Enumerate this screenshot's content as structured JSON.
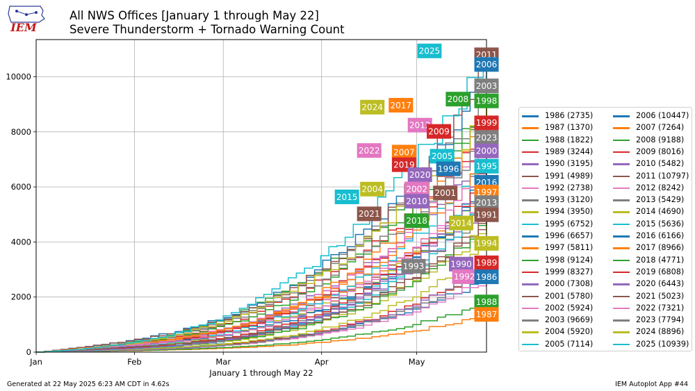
{
  "header": {
    "title_line1": "All NWS Offices [January 1 through May 22]",
    "title_line2": "Severe Thunderstorm + Tornado Warning Count",
    "logo_text": "IEM"
  },
  "footer": {
    "left": "Generated at 22 May 2025 6:23 AM CDT in 4.62s",
    "right": "IEM Autoplot App #44"
  },
  "chart_data": {
    "type": "line",
    "title": "All NWS Offices [January 1 through May 22]\nSevere Thunderstorm + Tornado Warning Count",
    "xlabel": "January 1 through May 22",
    "ylabel": "",
    "x_unit": "day of year",
    "x_ticks": [
      {
        "label": "Jan",
        "day": 1
      },
      {
        "label": "Feb",
        "day": 32
      },
      {
        "label": "Mar",
        "day": 60
      },
      {
        "label": "Apr",
        "day": 91
      },
      {
        "label": "May",
        "day": 121
      }
    ],
    "xlim": [
      1,
      143
    ],
    "ylim": [
      0,
      11350
    ],
    "y_ticks": [
      0,
      2000,
      4000,
      6000,
      8000,
      10000
    ],
    "grid": true,
    "legend_placement": "right",
    "series": [
      {
        "name": "1986",
        "total": 2735,
        "label": "1986 (2735)",
        "color": "#1f77b4"
      },
      {
        "name": "1987",
        "total": 1370,
        "label": "1987 (1370)",
        "color": "#ff7f0e"
      },
      {
        "name": "1988",
        "total": 1822,
        "label": "1988 (1822)",
        "color": "#2ca02c"
      },
      {
        "name": "1989",
        "total": 3244,
        "label": "1989 (3244)",
        "color": "#d62728"
      },
      {
        "name": "1990",
        "total": 3195,
        "label": "1990 (3195)",
        "color": "#9467bd"
      },
      {
        "name": "1991",
        "total": 4989,
        "label": "1991 (4989)",
        "color": "#8c564b"
      },
      {
        "name": "1992",
        "total": 2738,
        "label": "1992 (2738)",
        "color": "#e377c2"
      },
      {
        "name": "1993",
        "total": 3120,
        "label": "1993 (3120)",
        "color": "#7f7f7f"
      },
      {
        "name": "1994",
        "total": 3950,
        "label": "1994 (3950)",
        "color": "#bcbd22"
      },
      {
        "name": "1995",
        "total": 6752,
        "label": "1995 (6752)",
        "color": "#17becf"
      },
      {
        "name": "1996",
        "total": 6657,
        "label": "1996 (6657)",
        "color": "#1f77b4"
      },
      {
        "name": "1997",
        "total": 5811,
        "label": "1997 (5811)",
        "color": "#ff7f0e"
      },
      {
        "name": "1998",
        "total": 9124,
        "label": "1998 (9124)",
        "color": "#2ca02c"
      },
      {
        "name": "1999",
        "total": 8327,
        "label": "1999 (8327)",
        "color": "#d62728"
      },
      {
        "name": "2000",
        "total": 7308,
        "label": "2000 (7308)",
        "color": "#9467bd"
      },
      {
        "name": "2001",
        "total": 5780,
        "label": "2001 (5780)",
        "color": "#8c564b"
      },
      {
        "name": "2002",
        "total": 5924,
        "label": "2002 (5924)",
        "color": "#e377c2"
      },
      {
        "name": "2003",
        "total": 9669,
        "label": "2003 (9669)",
        "color": "#7f7f7f"
      },
      {
        "name": "2004",
        "total": 5920,
        "label": "2004 (5920)",
        "color": "#bcbd22"
      },
      {
        "name": "2005",
        "total": 7114,
        "label": "2005 (7114)",
        "color": "#17becf"
      },
      {
        "name": "2006",
        "total": 10447,
        "label": "2006 (10447)",
        "color": "#1f77b4"
      },
      {
        "name": "2007",
        "total": 7264,
        "label": "2007 (7264)",
        "color": "#ff7f0e"
      },
      {
        "name": "2008",
        "total": 9188,
        "label": "2008 (9188)",
        "color": "#2ca02c"
      },
      {
        "name": "2009",
        "total": 8016,
        "label": "2009 (8016)",
        "color": "#d62728"
      },
      {
        "name": "2010",
        "total": 5482,
        "label": "2010 (5482)",
        "color": "#9467bd"
      },
      {
        "name": "2011",
        "total": 10797,
        "label": "2011 (10797)",
        "color": "#8c564b"
      },
      {
        "name": "2012",
        "total": 8242,
        "label": "2012 (8242)",
        "color": "#e377c2"
      },
      {
        "name": "2013",
        "total": 5429,
        "label": "2013 (5429)",
        "color": "#7f7f7f"
      },
      {
        "name": "2014",
        "total": 4690,
        "label": "2014 (4690)",
        "color": "#bcbd22"
      },
      {
        "name": "2015",
        "total": 5636,
        "label": "2015 (5636)",
        "color": "#17becf"
      },
      {
        "name": "2016",
        "total": 6166,
        "label": "2016 (6166)",
        "color": "#1f77b4"
      },
      {
        "name": "2017",
        "total": 8966,
        "label": "2017 (8966)",
        "color": "#ff7f0e"
      },
      {
        "name": "2018",
        "total": 4771,
        "label": "2018 (4771)",
        "color": "#2ca02c"
      },
      {
        "name": "2019",
        "total": 6808,
        "label": "2019 (6808)",
        "color": "#d62728"
      },
      {
        "name": "2020",
        "total": 6443,
        "label": "2020 (6443)",
        "color": "#9467bd"
      },
      {
        "name": "2021",
        "total": 5023,
        "label": "2021 (5023)",
        "color": "#8c564b"
      },
      {
        "name": "2022",
        "total": 7321,
        "label": "2022 (7321)",
        "color": "#e377c2"
      },
      {
        "name": "2023",
        "total": 7794,
        "label": "2023 (7794)",
        "color": "#7f7f7f"
      },
      {
        "name": "2024",
        "total": 8896,
        "label": "2024 (8896)",
        "color": "#bcbd22"
      },
      {
        "name": "2025",
        "total": 10939,
        "label": "2025 (10939)",
        "color": "#17becf"
      }
    ],
    "annotations": [
      {
        "text": "2025",
        "x": 125,
        "y": 10939,
        "color": "#17becf"
      },
      {
        "text": "2011",
        "x": 143,
        "y": 10797,
        "color": "#8c564b"
      },
      {
        "text": "2006",
        "x": 143,
        "y": 10447,
        "color": "#1f77b4"
      },
      {
        "text": "2003",
        "x": 143,
        "y": 9669,
        "color": "#7f7f7f"
      },
      {
        "text": "2008",
        "x": 134,
        "y": 9188,
        "color": "#2ca02c"
      },
      {
        "text": "1998",
        "x": 143,
        "y": 9124,
        "color": "#2ca02c"
      },
      {
        "text": "2017",
        "x": 116,
        "y": 8966,
        "color": "#ff7f0e"
      },
      {
        "text": "2024",
        "x": 107,
        "y": 8896,
        "color": "#bcbd22"
      },
      {
        "text": "1999",
        "x": 143,
        "y": 8327,
        "color": "#d62728"
      },
      {
        "text": "2012",
        "x": 122,
        "y": 8242,
        "color": "#e377c2"
      },
      {
        "text": "2009",
        "x": 128,
        "y": 8016,
        "color": "#d62728"
      },
      {
        "text": "2023",
        "x": 143,
        "y": 7794,
        "color": "#7f7f7f"
      },
      {
        "text": "2022",
        "x": 106,
        "y": 7321,
        "color": "#e377c2"
      },
      {
        "text": "2000",
        "x": 143,
        "y": 7308,
        "color": "#9467bd"
      },
      {
        "text": "2007",
        "x": 117,
        "y": 7264,
        "color": "#ff7f0e"
      },
      {
        "text": "2005",
        "x": 129,
        "y": 7114,
        "color": "#17becf"
      },
      {
        "text": "2019",
        "x": 117,
        "y": 6808,
        "color": "#d62728"
      },
      {
        "text": "1995",
        "x": 143,
        "y": 6752,
        "color": "#17becf"
      },
      {
        "text": "1996",
        "x": 131,
        "y": 6657,
        "color": "#1f77b4"
      },
      {
        "text": "2020",
        "x": 122,
        "y": 6443,
        "color": "#9467bd"
      },
      {
        "text": "2016",
        "x": 143,
        "y": 6166,
        "color": "#1f77b4"
      },
      {
        "text": "2004",
        "x": 107,
        "y": 5920,
        "color": "#bcbd22"
      },
      {
        "text": "2002",
        "x": 121,
        "y": 5924,
        "color": "#e377c2"
      },
      {
        "text": "1997",
        "x": 143,
        "y": 5811,
        "color": "#ff7f0e"
      },
      {
        "text": "2001",
        "x": 130,
        "y": 5780,
        "color": "#8c564b"
      },
      {
        "text": "2015",
        "x": 99,
        "y": 5636,
        "color": "#17becf"
      },
      {
        "text": "2010",
        "x": 121,
        "y": 5482,
        "color": "#9467bd"
      },
      {
        "text": "2013",
        "x": 143,
        "y": 5429,
        "color": "#7f7f7f"
      },
      {
        "text": "2021",
        "x": 106,
        "y": 5023,
        "color": "#8c564b"
      },
      {
        "text": "1991",
        "x": 143,
        "y": 4989,
        "color": "#8c564b"
      },
      {
        "text": "2018",
        "x": 121,
        "y": 4771,
        "color": "#2ca02c"
      },
      {
        "text": "2014",
        "x": 135,
        "y": 4690,
        "color": "#bcbd22"
      },
      {
        "text": "1994",
        "x": 143,
        "y": 3950,
        "color": "#bcbd22"
      },
      {
        "text": "1989",
        "x": 143,
        "y": 3244,
        "color": "#d62728"
      },
      {
        "text": "1990",
        "x": 135,
        "y": 3195,
        "color": "#9467bd"
      },
      {
        "text": "1993",
        "x": 120,
        "y": 3120,
        "color": "#7f7f7f"
      },
      {
        "text": "1992",
        "x": 136,
        "y": 2738,
        "color": "#e377c2"
      },
      {
        "text": "1986",
        "x": 143,
        "y": 2735,
        "color": "#1f77b4"
      },
      {
        "text": "1988",
        "x": 143,
        "y": 1822,
        "color": "#2ca02c"
      },
      {
        "text": "1987",
        "x": 143,
        "y": 1370,
        "color": "#ff7f0e"
      }
    ]
  }
}
